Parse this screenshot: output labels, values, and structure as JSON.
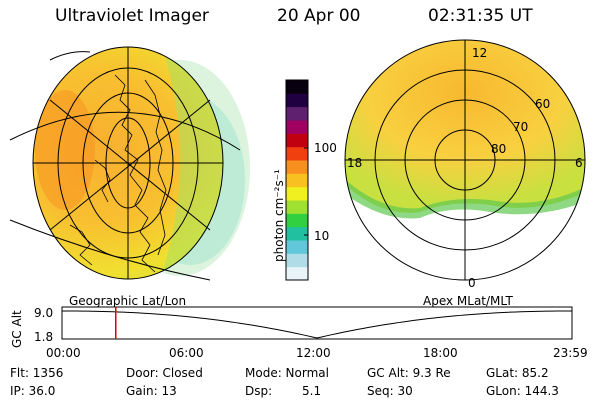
{
  "header": {
    "title": "Ultraviolet Imager",
    "date": "20 Apr 00",
    "time": "02:31:35 UT"
  },
  "left_panel": {
    "caption": "Geographic Lat/Lon"
  },
  "right_panel": {
    "caption": "Apex MLat/MLT",
    "lat_labels": [
      "60",
      "70",
      "80"
    ],
    "mlt_labels": {
      "top": "12",
      "left": "18",
      "right": "6",
      "bottom": "0"
    }
  },
  "colorbar": {
    "label": "photon cm⁻²s⁻¹",
    "ticks": [
      "100",
      "10"
    ],
    "colors": [
      "#e8f4f8",
      "#b0dce8",
      "#60c8d8",
      "#20c0a0",
      "#30d040",
      "#a0e030",
      "#f0f020",
      "#f8c020",
      "#f89020",
      "#f04010",
      "#c00010",
      "#a00060",
      "#602070",
      "#200040",
      "#080010"
    ]
  },
  "timeline": {
    "axis_label": "GC Alt",
    "y_ticks": [
      "9.0",
      "1.8"
    ],
    "x_ticks": [
      "00:00",
      "06:00",
      "12:00",
      "18:00",
      "23:59"
    ],
    "marker_hour": 2.53
  },
  "info": {
    "flt": "Flt: 1356",
    "ip": "IP: 36.0",
    "door": "Door: Closed",
    "gain": "Gain: 13",
    "mode": "Mode: Normal",
    "dsp_label": "Dsp:",
    "dsp_value": "5.1",
    "gc_alt": "GC Alt: 9.3 Re",
    "seq": "Seq: 30",
    "glat": "GLat:  85.2",
    "glon": "GLon: 144.3"
  }
}
